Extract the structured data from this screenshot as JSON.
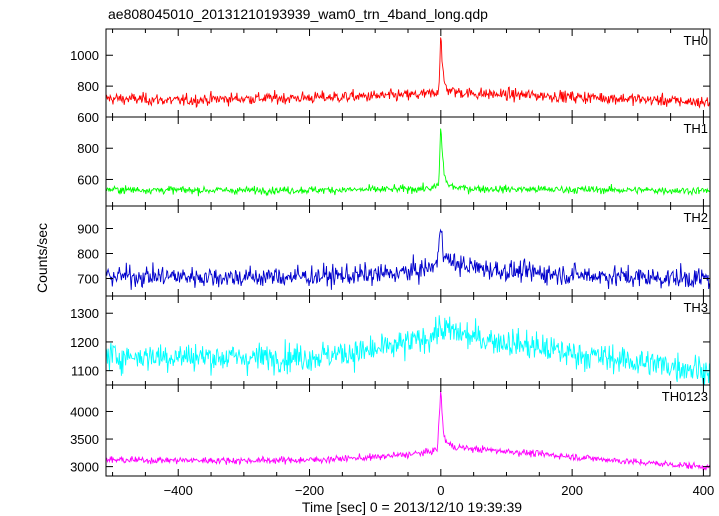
{
  "chart_data": {
    "type": "line",
    "title": "ae808045010_20131210193939_wam0_trn_4band_long.qdp",
    "xlabel": "Time [sec] 0 = 2013/12/10 19:39:39",
    "ylabel": "Counts/sec",
    "xlim": [
      -510,
      410
    ],
    "x_ticks": [
      -400,
      -200,
      0,
      200,
      400
    ],
    "grid": false,
    "panels": [
      {
        "name": "TH0",
        "color": "#ff0000",
        "ylim": [
          600,
          1170
        ],
        "y_ticks": [
          600,
          800,
          1000
        ],
        "x": [
          -510,
          -450,
          -400,
          -350,
          -300,
          -250,
          -200,
          -150,
          -100,
          -60,
          -30,
          -10,
          -3,
          0,
          2,
          5,
          10,
          20,
          40,
          60,
          100,
          150,
          200,
          250,
          300,
          350,
          400,
          410
        ],
        "values": [
          720,
          715,
          705,
          715,
          720,
          722,
          725,
          730,
          735,
          740,
          745,
          752,
          780,
          1160,
          950,
          820,
          780,
          765,
          755,
          750,
          745,
          740,
          730,
          725,
          715,
          705,
          695,
          695
        ],
        "noise": 35
      },
      {
        "name": "TH1",
        "color": "#00ff00",
        "ylim": [
          430,
          1000
        ],
        "y_ticks": [
          600,
          800
        ],
        "x": [
          -510,
          -400,
          -300,
          -200,
          -100,
          -40,
          -10,
          -3,
          0,
          2,
          5,
          10,
          20,
          40,
          100,
          200,
          300,
          400,
          410
        ],
        "values": [
          535,
          532,
          530,
          532,
          535,
          540,
          545,
          570,
          960,
          780,
          640,
          570,
          550,
          542,
          538,
          535,
          532,
          528,
          528
        ],
        "noise": 22
      },
      {
        "name": "TH2",
        "color": "#0000cc",
        "ylim": [
          630,
          990
        ],
        "y_ticks": [
          700,
          800,
          900
        ],
        "x": [
          -510,
          -400,
          -300,
          -200,
          -100,
          -50,
          -20,
          -5,
          0,
          3,
          8,
          20,
          50,
          100,
          200,
          300,
          400,
          410
        ],
        "values": [
          710,
          708,
          705,
          708,
          715,
          725,
          740,
          760,
          930,
          830,
          780,
          760,
          745,
          730,
          715,
          705,
          700,
          700
        ],
        "noise": 38
      },
      {
        "name": "TH3",
        "color": "#00ffff",
        "ylim": [
          1050,
          1360
        ],
        "y_ticks": [
          1100,
          1200,
          1300
        ],
        "x": [
          -510,
          -400,
          -300,
          -200,
          -100,
          -50,
          -20,
          0,
          20,
          50,
          100,
          200,
          300,
          400,
          410
        ],
        "values": [
          1150,
          1150,
          1145,
          1148,
          1170,
          1195,
          1215,
          1245,
          1235,
          1215,
          1200,
          1160,
          1130,
          1105,
          1100
        ],
        "noise": 45
      },
      {
        "name": "TH0123",
        "color": "#ff00ff",
        "ylim": [
          2830,
          4480
        ],
        "y_ticks": [
          3000,
          3500,
          4000
        ],
        "x": [
          -510,
          -400,
          -300,
          -200,
          -100,
          -50,
          -20,
          -5,
          0,
          2,
          5,
          10,
          20,
          50,
          100,
          200,
          300,
          400,
          410
        ],
        "values": [
          3120,
          3115,
          3110,
          3120,
          3170,
          3220,
          3260,
          3320,
          4450,
          3900,
          3550,
          3420,
          3360,
          3320,
          3280,
          3180,
          3080,
          3000,
          2990
        ],
        "noise": 55
      }
    ]
  }
}
